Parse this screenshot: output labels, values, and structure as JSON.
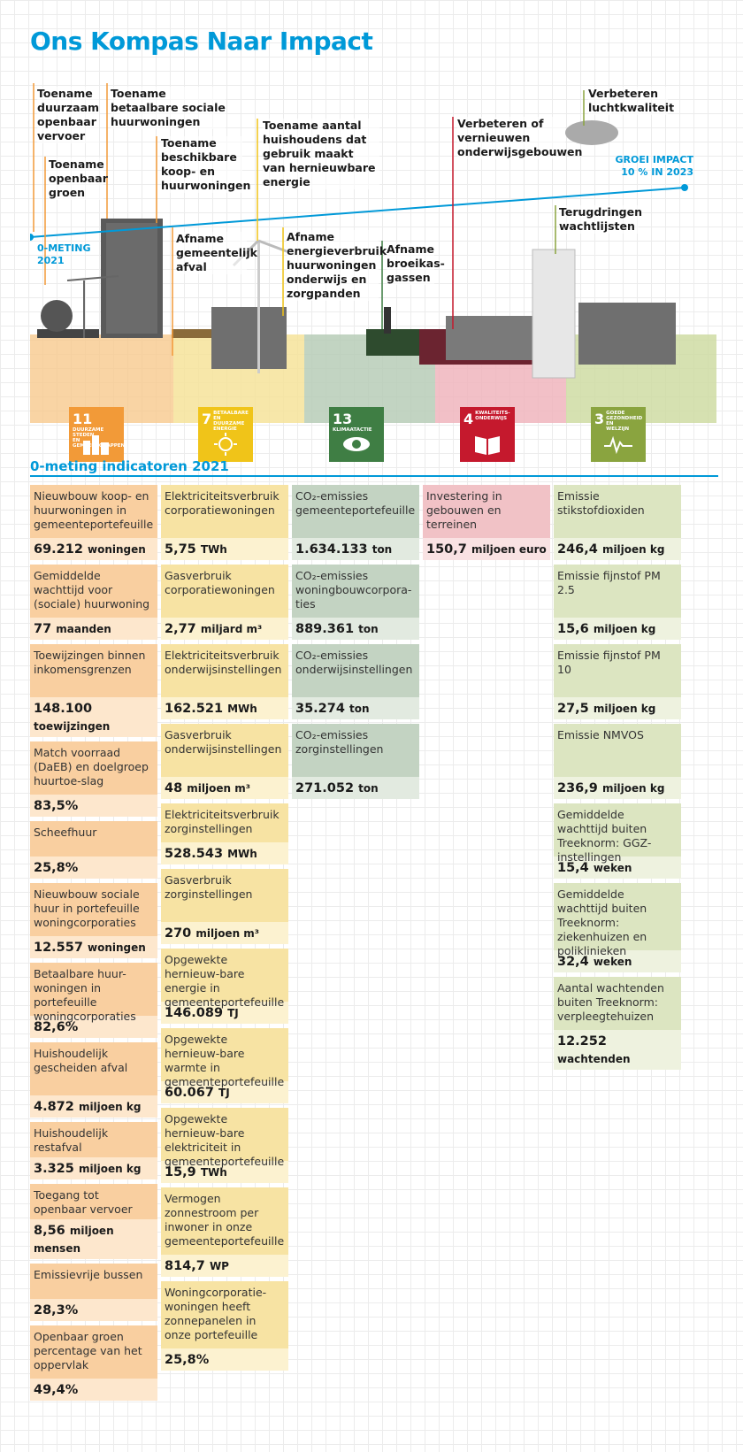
{
  "title": "Ons Kompas Naar Impact",
  "infographic": {
    "labels": [
      "Toename duurzaam openbaar vervoer",
      "Toename openbaar groen",
      "Toename betaalbare sociale huurwoningen",
      "Toename beschikbare koop- en huurwoningen",
      "Afname gemeentelijk afval",
      "Toename aantal huishoudens dat gebruik maakt van hernieuwbare energie",
      "Afname energieverbruik huurwoningen onderwijs en zorgpanden",
      "Afname broeikas-gassen",
      "Verbeteren of vernieuwen onderwijsgebouwen",
      "Verbeteren luchtkwaliteit",
      "Terugdringen wachtlijsten"
    ],
    "baseline_label": "0-METING 2021",
    "growth_label": "GROEI IMPACT 10 % IN 2023",
    "colors": {
      "accent": "#0099d8",
      "orange": "#f29a38",
      "yellow": "#f0c419",
      "green": "#3f7e44",
      "red": "#c5192d",
      "olive": "#8aa43f"
    },
    "sdgs": [
      {
        "num": "11",
        "caption": "DUURZAME STEDEN EN GEMEENSCHAPPEN",
        "icon": "city-icon"
      },
      {
        "num": "7",
        "caption": "BETAALBARE EN DUURZAME ENERGIE",
        "icon": "sun-icon"
      },
      {
        "num": "13",
        "caption": "KLIMAATACTIE",
        "icon": "eye-icon"
      },
      {
        "num": "4",
        "caption": "KWALITEITS-ONDERWIJS",
        "icon": "book-icon"
      },
      {
        "num": "3",
        "caption": "GOEDE GEZONDHEID EN WELZIJN",
        "icon": "heartbeat-icon"
      }
    ]
  },
  "section_title": "0-meting indicatoren 2021",
  "columns": [
    {
      "theme": "orange",
      "items": [
        {
          "label": "Nieuwbouw koop- en huurwoningen in gemeenteportefeuille",
          "value": "69.212",
          "unit": "woningen"
        },
        {
          "label": "Gemiddelde wachttijd voor (sociale) huurwoning",
          "value": "77",
          "unit": "maanden"
        },
        {
          "label": "Toewijzingen binnen inkomensgrenzen",
          "value": "148.100",
          "unit": "toewijzingen"
        },
        {
          "label": "Match voorraad (DaEB) en doelgroep huurtoe-slag",
          "value": "83,5%",
          "unit": ""
        },
        {
          "label": "Scheefhuur",
          "value": "25,8%",
          "unit": ""
        },
        {
          "label": "Nieuwbouw sociale huur in portefeuille woningcorporaties",
          "value": "12.557",
          "unit": "woningen"
        },
        {
          "label": "Betaalbare huur-woningen in portefeuille woningcorporaties",
          "value": "82,6%",
          "unit": ""
        },
        {
          "label": "Huishoudelijk gescheiden afval",
          "value": "4.872",
          "unit": "miljoen kg"
        },
        {
          "label": "Huishoudelijk restafval",
          "value": "3.325",
          "unit": "miljoen kg"
        },
        {
          "label": "Toegang tot openbaar vervoer",
          "value": "8,56",
          "unit": "miljoen mensen"
        },
        {
          "label": "Emissievrije bussen",
          "value": "28,3%",
          "unit": ""
        },
        {
          "label": "Openbaar groen percentage van het oppervlak",
          "value": "49,4%",
          "unit": ""
        }
      ]
    },
    {
      "theme": "yellow",
      "items": [
        {
          "label": "Elektriciteitsverbruik corporatiewoningen",
          "value": "5,75",
          "unit": "TWh"
        },
        {
          "label": "Gasverbruik corporatiewoningen",
          "value": "2,77",
          "unit": "miljard m³"
        },
        {
          "label": "Elektriciteitsverbruik onderwijsinstellingen",
          "value": "162.521",
          "unit": "MWh"
        },
        {
          "label": "Gasverbruik onderwijsinstellingen",
          "value": "48",
          "unit": "miljoen m³"
        },
        {
          "label": "Elektriciteitsverbruik zorginstellingen",
          "value": "528.543",
          "unit": "MWh"
        },
        {
          "label": "Gasverbruik zorginstellingen",
          "value": "270",
          "unit": "miljoen m³"
        },
        {
          "label": "Opgewekte hernieuw-bare energie in gemeenteportefeuille",
          "value": "146.089",
          "unit": "TJ"
        },
        {
          "label": "Opgewekte hernieuw-bare warmte in gemeenteportefeuille",
          "value": "60.067",
          "unit": "TJ"
        },
        {
          "label": "Opgewekte hernieuw-bare elektriciteit in gemeenteportefeuille",
          "value": "15,9",
          "unit": "TWh"
        },
        {
          "label": "Vermogen zonnestroom per inwoner in onze gemeenteportefeuille",
          "value": "814,7",
          "unit": "WP"
        },
        {
          "label": "Woningcorporatie-woningen heeft zonnepanelen in onze portefeuille",
          "value": "25,8%",
          "unit": ""
        }
      ]
    },
    {
      "theme": "green",
      "items": [
        {
          "label": "CO₂-emissies gemeenteportefeuille",
          "value": "1.634.133",
          "unit": "ton"
        },
        {
          "label": "CO₂-emissies woningbouwcorpora-ties",
          "value": "889.361",
          "unit": "ton"
        },
        {
          "label": "CO₂-emissies onderwijsinstellingen",
          "value": "35.274",
          "unit": "ton"
        },
        {
          "label": "CO₂-emissies zorginstellingen",
          "value": "271.052",
          "unit": "ton"
        }
      ]
    },
    {
      "theme": "red",
      "items": [
        {
          "label": "Investering in gebouwen en terreinen",
          "value": "150,7",
          "unit": "miljoen euro"
        }
      ]
    },
    {
      "theme": "olive",
      "items": [
        {
          "label": "Emissie stikstofdioxiden",
          "value": "246,4",
          "unit": "miljoen kg"
        },
        {
          "label": "Emissie fijnstof PM 2.5",
          "value": "15,6",
          "unit": "miljoen kg"
        },
        {
          "label": "Emissie fijnstof PM 10",
          "value": "27,5",
          "unit": "miljoen kg"
        },
        {
          "label": "Emissie NMVOS",
          "value": "236,9",
          "unit": "miljoen kg"
        },
        {
          "label": "Gemiddelde wachttijd buiten Treeknorm: GGZ-instellingen",
          "value": "15,4",
          "unit": "weken"
        },
        {
          "label": "Gemiddelde wachttijd buiten Treeknorm: ziekenhuizen en poliklinieken",
          "value": "32,4",
          "unit": "weken"
        },
        {
          "label": "Aantal wachtenden buiten Treeknorm: verpleegtehuizen",
          "value": "12.252",
          "unit": "wachtenden"
        }
      ]
    }
  ]
}
